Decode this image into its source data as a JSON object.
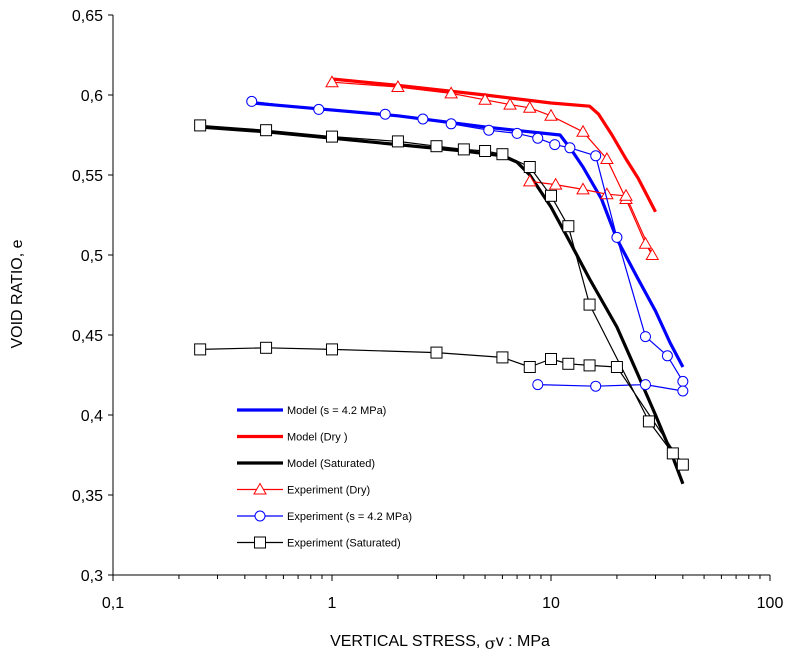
{
  "chart_data": {
    "type": "scatter",
    "xscale": "log",
    "xlim": [
      0.1,
      100
    ],
    "ylim": [
      0.3,
      0.65
    ],
    "xticks": [
      {
        "value": 0.1,
        "label": "0,1"
      },
      {
        "value": 1,
        "label": "1"
      },
      {
        "value": 10,
        "label": "10"
      },
      {
        "value": 100,
        "label": "100"
      }
    ],
    "yticks": [
      {
        "value": 0.3,
        "label": "0,3"
      },
      {
        "value": 0.35,
        "label": "0,35"
      },
      {
        "value": 0.4,
        "label": "0,4"
      },
      {
        "value": 0.45,
        "label": "0,45"
      },
      {
        "value": 0.5,
        "label": "0,5"
      },
      {
        "value": 0.55,
        "label": "0,55"
      },
      {
        "value": 0.6,
        "label": "0,6"
      },
      {
        "value": 0.65,
        "label": "0,65"
      }
    ],
    "xlabel": "VERTICAL STRESS, σv : MPa",
    "xlabel_parts": {
      "main": "VERTICAL STRESS, ",
      "greek": "σ",
      "tail": "v : MPa"
    },
    "ylabel": "VOID RATIO, e",
    "grid": false,
    "legend_position": "lower-left inside plot",
    "series": [
      {
        "name": "Model (s = 4.2 MPa)",
        "kind": "line",
        "color": "#0000ff",
        "marker": "none",
        "x": [
          0.43,
          2,
          5,
          8,
          11,
          12.5,
          14,
          17,
          20,
          25,
          30,
          35,
          40
        ],
        "y": [
          0.595,
          0.587,
          0.58,
          0.577,
          0.575,
          0.565,
          0.555,
          0.535,
          0.51,
          0.485,
          0.465,
          0.445,
          0.43
        ]
      },
      {
        "name": "Model (Dry )",
        "kind": "line",
        "color": "#ff0000",
        "marker": "none",
        "x": [
          1,
          2,
          5,
          10,
          15,
          16.5,
          19,
          22,
          25,
          28,
          30
        ],
        "y": [
          0.61,
          0.606,
          0.6,
          0.595,
          0.593,
          0.588,
          0.575,
          0.56,
          0.548,
          0.535,
          0.527
        ]
      },
      {
        "name": "Model (Saturated)",
        "kind": "line",
        "color": "#000000",
        "marker": "none",
        "x": [
          0.25,
          0.5,
          1,
          2,
          4,
          6,
          7,
          8,
          10,
          12,
          15,
          20,
          25,
          30,
          35,
          40
        ],
        "y": [
          0.58,
          0.577,
          0.573,
          0.569,
          0.565,
          0.562,
          0.558,
          0.55,
          0.53,
          0.51,
          0.485,
          0.455,
          0.425,
          0.4,
          0.378,
          0.357
        ]
      },
      {
        "name": "Experiment (Dry)",
        "kind": "line-marker",
        "color": "#ff0000",
        "marker": "triangle",
        "x": [
          1,
          2,
          3.5,
          5,
          6.5,
          8,
          10,
          14,
          18,
          22,
          27,
          29,
          22,
          18,
          14,
          10.5,
          8
        ],
        "y": [
          0.608,
          0.605,
          0.601,
          0.597,
          0.594,
          0.592,
          0.587,
          0.577,
          0.56,
          0.535,
          0.507,
          0.5,
          0.537,
          0.538,
          0.541,
          0.544,
          0.546
        ]
      },
      {
        "name": "Experiment (s = 4.2 MPa)",
        "kind": "line-marker",
        "color": "#0000ff",
        "marker": "circle",
        "x": [
          0.43,
          0.87,
          1.75,
          2.6,
          3.5,
          5.2,
          7,
          8.7,
          10.4,
          12.2,
          16,
          20,
          27,
          34,
          40,
          40,
          27,
          16,
          8.7
        ],
        "y": [
          0.596,
          0.591,
          0.588,
          0.585,
          0.582,
          0.578,
          0.576,
          0.573,
          0.569,
          0.567,
          0.562,
          0.511,
          0.449,
          0.437,
          0.421,
          0.415,
          0.419,
          0.418,
          0.419
        ]
      },
      {
        "name": "Experiment (Saturated)",
        "kind": "line-marker",
        "color": "#000000",
        "marker": "square",
        "x": [
          0.25,
          0.5,
          1,
          2,
          3,
          4,
          5,
          6,
          8,
          10,
          12,
          15,
          28,
          36,
          40,
          20,
          15,
          12,
          10,
          8,
          6,
          3,
          1,
          0.5,
          0.25
        ],
        "y": [
          0.581,
          0.578,
          0.574,
          0.571,
          0.568,
          0.566,
          0.565,
          0.563,
          0.555,
          0.537,
          0.518,
          0.469,
          0.396,
          0.376,
          0.369,
          0.43,
          0.431,
          0.432,
          0.435,
          0.43,
          0.436,
          0.439,
          0.441,
          0.442,
          0.441
        ]
      }
    ]
  }
}
